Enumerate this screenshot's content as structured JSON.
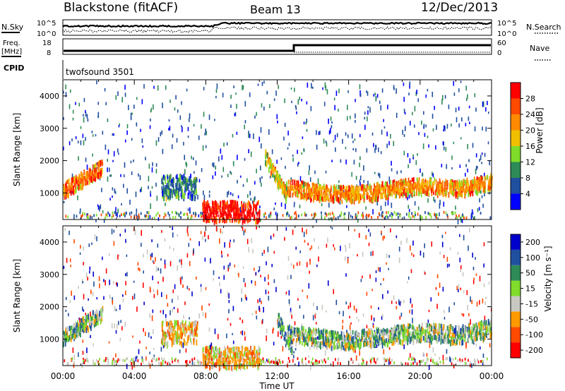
{
  "header": {
    "station": "Blackstone (fitACF)",
    "beam": "Beam 13",
    "date": "12/Dec/2013"
  },
  "side_labels": {
    "nsky": "N.Sky",
    "nsearch": "N.Search",
    "freq": "Freq.",
    "freq_unit": "[MHz]",
    "nave": "Nave",
    "cpid": "CPID",
    "cpid_value": "twofsound 3501"
  },
  "noise_axis": {
    "left_top": "10^5",
    "left_bottom": "10^0",
    "right_top": "10^5",
    "right_bottom": "10^0"
  },
  "freq_axis": {
    "left_top": "18",
    "left_bottom": "8",
    "right_top": "60",
    "right_bottom": "0"
  },
  "colors": {
    "power": [
      "#0000ff",
      "#1f4f9f",
      "#2e8b57",
      "#7fdc2a",
      "#f0c000",
      "#ff8a00",
      "#ff4a00",
      "#ff0000"
    ],
    "velocity": [
      "#ff0000",
      "#ff4a00",
      "#ff9a00",
      "#c8c8c0",
      "#7fdc2a",
      "#2e8b57",
      "#1f4f9f",
      "#0000cc"
    ]
  },
  "chart_data": [
    {
      "type": "heatmap",
      "panel": "power",
      "ylabel": "Slant Range [km]",
      "y_ticks": [
        "1000",
        "2000",
        "3000",
        "4000"
      ],
      "ylim": [
        180,
        4500
      ],
      "colorbar": {
        "label": "Power [dB]",
        "ticks": [
          "4",
          "8",
          "12",
          "16",
          "20",
          "24",
          "28"
        ],
        "range": [
          0,
          32
        ]
      },
      "x_ticks": [
        "00:00",
        "04:00",
        "08:00",
        "12:00",
        "16:00",
        "20:00",
        "00:00"
      ],
      "xlim_hours": [
        0,
        24
      ],
      "features": [
        {
          "t": [
            0.0,
            2.2
          ],
          "range_km": [
            1050,
            1900
          ],
          "power_db": 24
        },
        {
          "t": [
            7.8,
            11.0
          ],
          "range_km": [
            180,
            800
          ],
          "power_db": 30
        },
        {
          "t": [
            12.5,
            24.0
          ],
          "range_km": [
            900,
            1400
          ],
          "power_db": 22
        },
        {
          "t": [
            5.5,
            7.5
          ],
          "range_km": [
            900,
            1600
          ],
          "power_db": 8
        },
        {
          "t": [
            11.3,
            12.5
          ],
          "range_km": [
            1000,
            2200
          ],
          "power_db": 18
        }
      ]
    },
    {
      "type": "heatmap",
      "panel": "velocity",
      "xlabel": "Time UT",
      "ylabel": "Slant Range [km]",
      "y_ticks": [
        "1000",
        "2000",
        "3000",
        "4000"
      ],
      "ylim": [
        180,
        4500
      ],
      "colorbar": {
        "label": "Velocity [m s⁻¹]",
        "ticks": [
          "200",
          "100",
          "50",
          "15",
          "-15",
          "-50",
          "-100",
          "-200"
        ],
        "range": [
          -250,
          250
        ]
      },
      "x_ticks": [
        "00:00",
        "04:00",
        "08:00",
        "12:00",
        "16:00",
        "20:00",
        "00:00"
      ],
      "xlim_hours": [
        0,
        24
      ],
      "features": [
        {
          "t": [
            0.0,
            2.2
          ],
          "range_km": [
            1050,
            1900
          ],
          "velocity": 0
        },
        {
          "t": [
            5.5,
            7.5
          ],
          "range_km": [
            900,
            1600
          ],
          "velocity": -60
        },
        {
          "t": [
            7.8,
            11.0
          ],
          "range_km": [
            180,
            800
          ],
          "velocity": -60
        },
        {
          "t": [
            12.5,
            24.0
          ],
          "range_km": [
            900,
            1400
          ],
          "velocity": 0
        },
        {
          "t": [
            12.0,
            12.8
          ],
          "range_km": [
            700,
            1700
          ],
          "velocity": 30
        }
      ]
    }
  ]
}
